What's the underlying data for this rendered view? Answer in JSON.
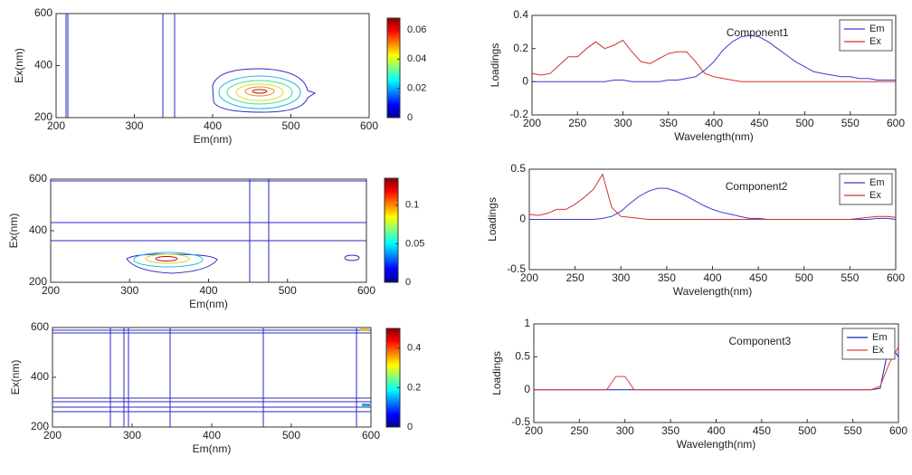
{
  "chart_data": [
    {
      "type": "contour",
      "xlabel": "Em(nm)",
      "ylabel": "Ex(nm)",
      "xlim": [
        200,
        600
      ],
      "ylim": [
        200,
        600
      ],
      "xticks": [
        200,
        300,
        400,
        500,
        600
      ],
      "yticks": [
        200,
        400,
        600
      ],
      "clim": [
        0,
        0.068
      ],
      "cticks": [
        0,
        0.02,
        0.04,
        0.06
      ]
    },
    {
      "type": "line",
      "annotation": "Component1",
      "xlabel": "Wavelength(nm)",
      "ylabel": "Loadings",
      "xlim": [
        200,
        600
      ],
      "ylim": [
        -0.2,
        0.4
      ],
      "xticks": [
        200,
        250,
        300,
        350,
        400,
        450,
        500,
        550,
        600
      ],
      "yticks": [
        -0.2,
        0,
        0.2,
        0.4
      ],
      "x": [
        200,
        210,
        220,
        230,
        240,
        250,
        260,
        270,
        280,
        290,
        300,
        310,
        320,
        330,
        340,
        350,
        360,
        370,
        380,
        390,
        400,
        410,
        420,
        430,
        440,
        450,
        460,
        470,
        480,
        490,
        500,
        510,
        520,
        530,
        540,
        550,
        560,
        570,
        580,
        590,
        600
      ],
      "series": [
        {
          "name": "Em",
          "color": "#3a3ad0",
          "values": [
            0,
            0,
            0,
            0,
            0,
            0,
            0,
            0,
            0,
            0.01,
            0.01,
            0,
            0,
            0,
            0,
            0.01,
            0.01,
            0.02,
            0.03,
            0.07,
            0.12,
            0.19,
            0.24,
            0.27,
            0.28,
            0.27,
            0.24,
            0.2,
            0.16,
            0.12,
            0.09,
            0.06,
            0.05,
            0.04,
            0.03,
            0.03,
            0.02,
            0.02,
            0.01,
            0.01,
            0.01
          ]
        },
        {
          "name": "Ex",
          "color": "#d03030",
          "values": [
            0.05,
            0.04,
            0.05,
            0.1,
            0.15,
            0.15,
            0.2,
            0.24,
            0.2,
            0.22,
            0.25,
            0.18,
            0.12,
            0.11,
            0.14,
            0.17,
            0.18,
            0.18,
            0.12,
            0.05,
            0.03,
            0.02,
            0.01,
            0,
            0,
            0,
            0,
            0,
            0,
            0,
            0,
            0,
            0,
            0,
            0,
            0,
            0,
            0,
            0,
            0,
            0
          ]
        }
      ]
    },
    {
      "type": "contour",
      "xlabel": "Em(nm)",
      "ylabel": "Ex(nm)",
      "xlim": [
        200,
        600
      ],
      "ylim": [
        200,
        600
      ],
      "xticks": [
        200,
        300,
        400,
        500,
        600
      ],
      "yticks": [
        200,
        400,
        600
      ],
      "clim": [
        0,
        0.135
      ],
      "cticks": [
        0,
        0.05,
        0.1
      ]
    },
    {
      "type": "line",
      "annotation": "Component2",
      "xlabel": "Wavelength(nm)",
      "ylabel": "Loadings",
      "xlim": [
        200,
        600
      ],
      "ylim": [
        -0.5,
        0.5
      ],
      "xticks": [
        200,
        250,
        300,
        350,
        400,
        450,
        500,
        550,
        600
      ],
      "yticks": [
        -0.5,
        0,
        0.5
      ],
      "x": [
        200,
        210,
        220,
        230,
        240,
        250,
        260,
        270,
        280,
        290,
        300,
        310,
        320,
        330,
        340,
        350,
        360,
        370,
        380,
        390,
        400,
        410,
        420,
        430,
        440,
        450,
        460,
        470,
        480,
        490,
        500,
        510,
        520,
        530,
        540,
        550,
        560,
        570,
        580,
        590,
        600
      ],
      "series": [
        {
          "name": "Em",
          "color": "#3a3ad0",
          "values": [
            0,
            0,
            0,
            0,
            0,
            0,
            0,
            0,
            0.01,
            0.03,
            0.08,
            0.16,
            0.23,
            0.28,
            0.31,
            0.31,
            0.28,
            0.24,
            0.19,
            0.14,
            0.1,
            0.07,
            0.05,
            0.03,
            0.01,
            0.01,
            0,
            0,
            0,
            0,
            0,
            0,
            0,
            0,
            0,
            0,
            0,
            0,
            0.01,
            0.01,
            0
          ]
        },
        {
          "name": "Ex",
          "color": "#d03030",
          "values": [
            0.05,
            0.04,
            0.06,
            0.1,
            0.1,
            0.15,
            0.22,
            0.3,
            0.45,
            0.12,
            0.03,
            0.02,
            0.01,
            0,
            0,
            0,
            0,
            0,
            0,
            0,
            0,
            0,
            0,
            0,
            0,
            0,
            0,
            0,
            0,
            0,
            0,
            0,
            0,
            0,
            0,
            0,
            0.01,
            0.02,
            0.03,
            0.03,
            0.02
          ]
        }
      ]
    },
    {
      "type": "contour",
      "xlabel": "Em(nm)",
      "ylabel": "Ex(nm)",
      "xlim": [
        200,
        600
      ],
      "ylim": [
        200,
        600
      ],
      "xticks": [
        200,
        300,
        400,
        500,
        600
      ],
      "yticks": [
        200,
        400,
        600
      ],
      "clim": [
        0,
        0.5
      ],
      "cticks": [
        0,
        0.2,
        0.4
      ]
    },
    {
      "type": "line",
      "annotation": "Component3",
      "xlabel": "Wavelength(nm)",
      "ylabel": "Loadings",
      "xlim": [
        200,
        600
      ],
      "ylim": [
        -0.5,
        1
      ],
      "xticks": [
        200,
        250,
        300,
        350,
        400,
        450,
        500,
        550,
        600
      ],
      "yticks": [
        -0.5,
        0,
        0.5,
        1
      ],
      "x": [
        200,
        210,
        220,
        230,
        240,
        250,
        260,
        270,
        280,
        290,
        300,
        310,
        320,
        330,
        340,
        350,
        360,
        370,
        380,
        390,
        400,
        410,
        420,
        430,
        440,
        450,
        460,
        470,
        480,
        490,
        500,
        510,
        520,
        530,
        540,
        550,
        560,
        570,
        580,
        590,
        600
      ],
      "series": [
        {
          "name": "Em",
          "color": "#1a1ab0",
          "values": [
            0,
            0,
            0,
            0,
            0,
            0,
            0,
            0,
            0,
            0,
            0,
            0,
            0,
            0,
            0,
            0,
            0,
            0,
            0,
            0,
            0,
            0,
            0,
            0,
            0,
            0,
            0,
            0,
            0,
            0,
            0,
            0,
            0,
            0,
            0,
            0,
            0,
            0,
            0.02,
            0.7,
            0.5
          ]
        },
        {
          "name": "Ex",
          "color": "#e04040",
          "values": [
            0,
            0,
            0,
            0,
            0,
            0,
            0,
            0,
            0,
            0.2,
            0.2,
            0,
            0,
            0,
            0,
            0,
            0,
            0,
            0,
            0,
            0,
            0,
            0,
            0,
            0,
            0,
            0,
            0,
            0,
            0,
            0,
            0,
            0,
            0,
            0,
            0,
            0,
            0,
            0.05,
            0.4,
            0.65
          ]
        }
      ]
    }
  ]
}
